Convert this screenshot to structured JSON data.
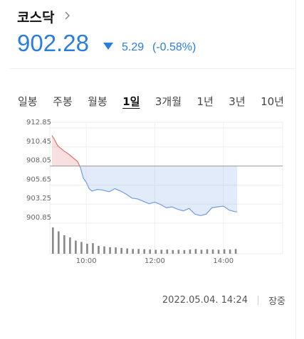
{
  "header": {
    "title": "코스닥",
    "price": "902.28",
    "change": "5.29",
    "change_pct": "(-0.58%)"
  },
  "tabs": {
    "items": [
      "일봉",
      "주봉",
      "월봉",
      "1일",
      "3개월",
      "1년",
      "3년",
      "10년"
    ],
    "selected": 3
  },
  "chart_data": {
    "type": "line",
    "x": [
      "09:00",
      "09:05",
      "09:10",
      "09:20",
      "09:30",
      "09:40",
      "09:45",
      "09:50",
      "09:55",
      "10:00",
      "10:05",
      "10:10",
      "10:20",
      "10:30",
      "10:40",
      "10:50",
      "11:00",
      "11:10",
      "11:20",
      "11:30",
      "11:40",
      "11:50",
      "12:00",
      "12:10",
      "12:20",
      "12:30",
      "12:40",
      "12:50",
      "13:00",
      "13:10",
      "13:20",
      "13:30",
      "13:40",
      "13:50",
      "14:00",
      "14:10",
      "14:20",
      "14:24"
    ],
    "values": [
      911.9,
      911.3,
      910.6,
      910.0,
      909.5,
      908.9,
      908.6,
      907.8,
      906.5,
      906.0,
      905.2,
      904.9,
      905.1,
      905.0,
      904.8,
      905.2,
      904.9,
      904.5,
      904.0,
      903.9,
      903.6,
      903.3,
      903.5,
      903.2,
      902.8,
      902.9,
      902.6,
      902.4,
      902.7,
      902.0,
      901.8,
      902.0,
      902.8,
      902.9,
      903.0,
      902.5,
      902.3,
      902.28
    ],
    "xlim": [
      "09:00",
      "15:30"
    ],
    "xticks": [
      "10:00",
      "12:00",
      "14:00"
    ],
    "ylim": [
      900.85,
      912.85
    ],
    "yticks": [
      912.85,
      910.45,
      908.05,
      905.65,
      903.25,
      900.85
    ],
    "reference_line": 908.05,
    "up_color": "#e07070",
    "down_color": "#6f9be8",
    "volume": {
      "x": [
        "09:00",
        "09:10",
        "09:20",
        "09:30",
        "09:40",
        "09:50",
        "10:00",
        "10:10",
        "10:20",
        "10:30",
        "10:40",
        "10:50",
        "11:00",
        "11:10",
        "11:20",
        "11:30",
        "11:40",
        "11:50",
        "12:00",
        "12:10",
        "12:20",
        "12:30",
        "12:40",
        "12:50",
        "13:00",
        "13:10",
        "13:20",
        "13:30",
        "13:40",
        "13:50",
        "14:00",
        "14:10",
        "14:20"
      ],
      "values": [
        100,
        85,
        70,
        62,
        50,
        45,
        38,
        40,
        30,
        28,
        25,
        24,
        22,
        20,
        18,
        18,
        17,
        16,
        15,
        15,
        16,
        14,
        15,
        14,
        16,
        18,
        15,
        17,
        16,
        15,
        17,
        16,
        18
      ],
      "color": "#888888"
    }
  },
  "footer": {
    "datetime": "2022.05.04. 14:24",
    "status": "장중"
  }
}
